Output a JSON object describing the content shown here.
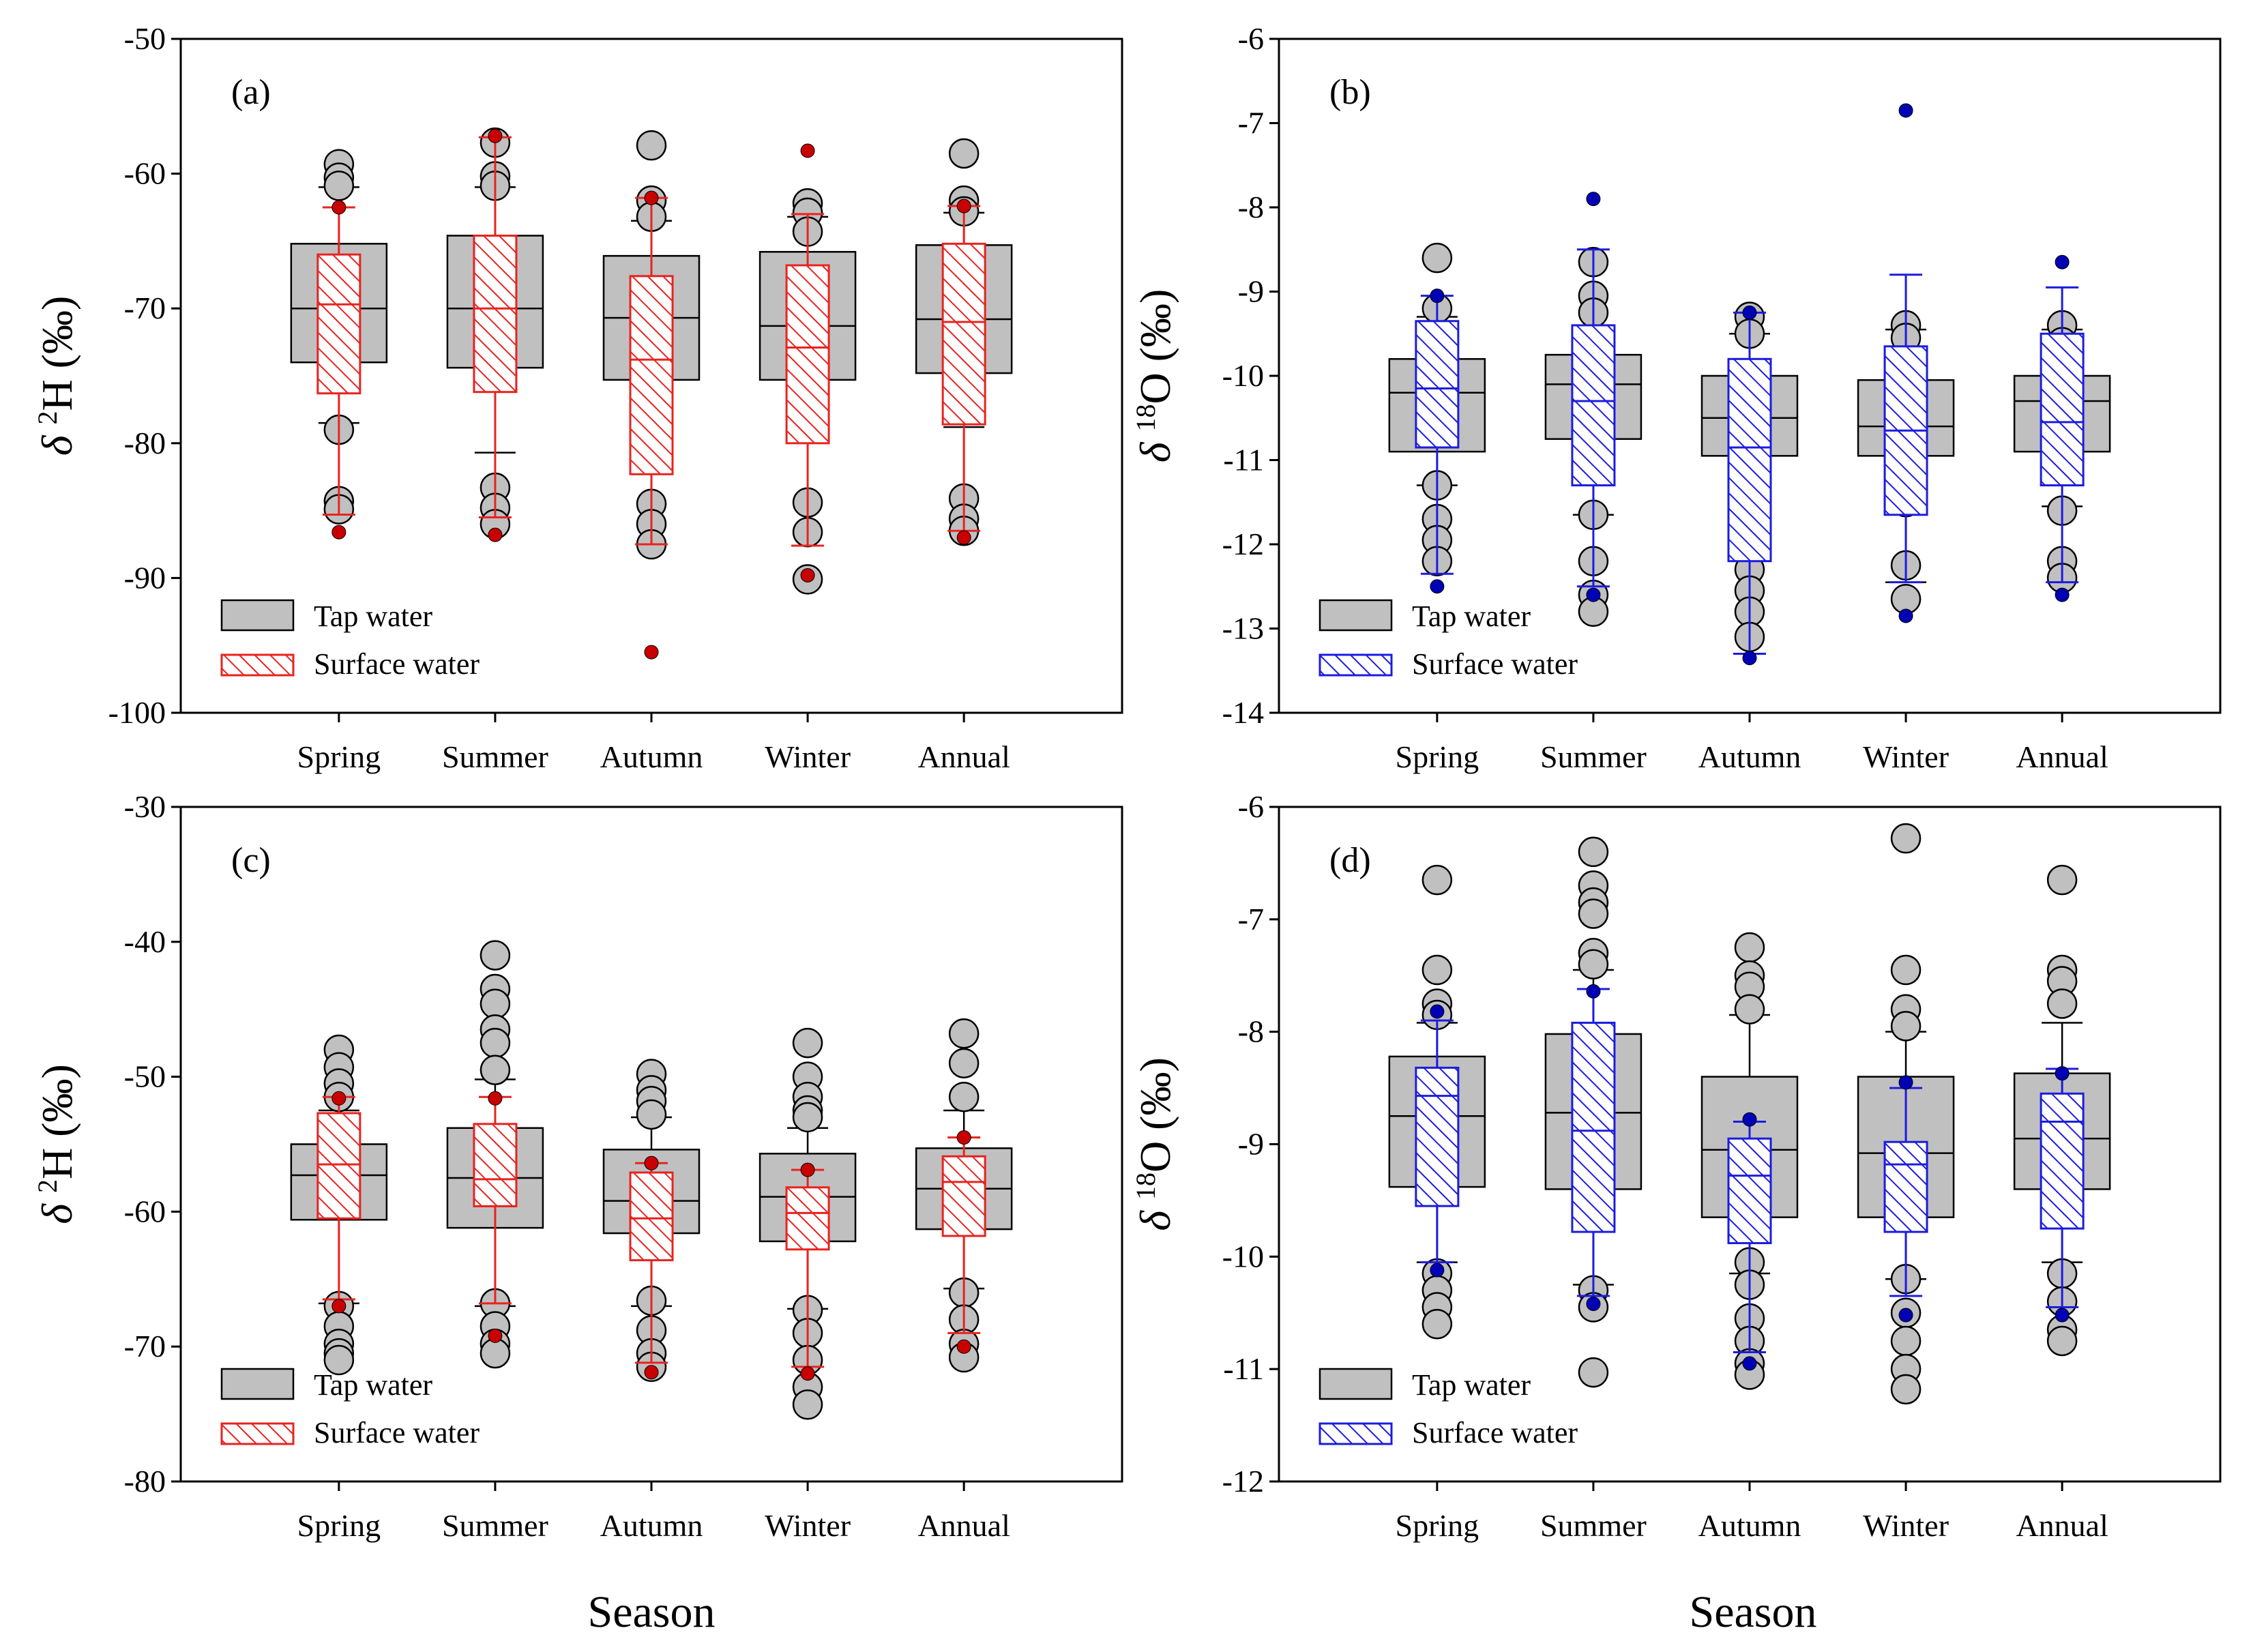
{
  "figure": {
    "xlabel": "Season",
    "xlabel_count": 2
  },
  "legend": {
    "tap": "Tap water",
    "surface": "Surface water"
  },
  "colors": {
    "tap_fill": "#c0c0c0",
    "red": "#e8231f",
    "blue": "#1c1ce0",
    "red_dot": "#c80000",
    "blue_dot": "#0000b4"
  },
  "chart_data": [
    {
      "type": "box",
      "label": "(a)",
      "ylabel": {
        "prefix": "δ",
        "sup": "2",
        "rest": "H (‰)"
      },
      "ylim": [
        -100,
        -50
      ],
      "yticks": [
        -100,
        -90,
        -80,
        -70,
        -60,
        -50
      ],
      "color": "red",
      "categories": [
        "Spring",
        "Summer",
        "Autumn",
        "Winter",
        "Annual"
      ],
      "tap": [
        {
          "q1": -74,
          "median": -70,
          "q3": -65.2,
          "wl": -78.5,
          "wh": -61,
          "out": [
            -59.3,
            -60.3,
            -60.9,
            -79,
            -84.3,
            -84.9
          ]
        },
        {
          "q1": -74.4,
          "median": -70,
          "q3": -64.6,
          "wl": -80.7,
          "wh": -61,
          "out": [
            -57.7,
            -60.2,
            -60.9,
            -83.3,
            -84.8,
            -86
          ]
        },
        {
          "q1": -75.3,
          "median": -70.7,
          "q3": -66.1,
          "wl": -78.1,
          "wh": -63.5,
          "out": [
            -57.9,
            -62,
            -63.2,
            -77.8,
            -84.5,
            -86,
            -87.5
          ]
        },
        {
          "q1": -75.3,
          "median": -71.3,
          "q3": -65.8,
          "wl": -78.5,
          "wh": -63.2,
          "out": [
            -62.2,
            -62.9,
            -64.3,
            -78.2,
            -84.4,
            -86.6,
            -90.1
          ]
        },
        {
          "q1": -74.8,
          "median": -70.8,
          "q3": -65.3,
          "wl": -78.8,
          "wh": -62.9,
          "out": [
            -58.5,
            -62,
            -62.8,
            -84.1,
            -85.6,
            -86.5
          ]
        }
      ],
      "surface": [
        {
          "q1": -76.3,
          "median": -69.7,
          "q3": -66,
          "wl": -85.3,
          "wh": -62.5,
          "out": [
            -62.5,
            -86.6
          ]
        },
        {
          "q1": -76.2,
          "median": -70,
          "q3": -64.6,
          "wl": -85.5,
          "wh": -57.3,
          "out": [
            -57.2,
            -86.8
          ]
        },
        {
          "q1": -82.3,
          "median": -73.8,
          "q3": -67.6,
          "wl": -87.5,
          "wh": -61.8,
          "out": [
            -61.8,
            -95.5
          ]
        },
        {
          "q1": -80,
          "median": -72.9,
          "q3": -66.8,
          "wl": -87.6,
          "wh": -63,
          "out": [
            -58.3,
            -89.8
          ]
        },
        {
          "q1": -78.6,
          "median": -71,
          "q3": -65.2,
          "wl": -86.5,
          "wh": -62.4,
          "out": [
            -62.4,
            -87
          ]
        }
      ]
    },
    {
      "type": "box",
      "label": "(b)",
      "ylabel": {
        "prefix": "δ",
        "sup": "18",
        "rest": "O (‰)"
      },
      "ylim": [
        -14,
        -6
      ],
      "yticks": [
        -14,
        -13,
        -12,
        -11,
        -10,
        -9,
        -8,
        -7,
        -6
      ],
      "color": "blue",
      "categories": [
        "Spring",
        "Summer",
        "Autumn",
        "Winter",
        "Annual"
      ],
      "tap": [
        {
          "q1": -10.9,
          "median": -10.2,
          "q3": -9.8,
          "wl": -11.3,
          "wh": -9.3,
          "out": [
            -8.6,
            -9.2,
            -11.3,
            -11.7,
            -11.95,
            -12.2
          ]
        },
        {
          "q1": -10.75,
          "median": -10.1,
          "q3": -9.75,
          "wl": -11.65,
          "wh": -9.4,
          "out": [
            -8.65,
            -9.05,
            -9.25,
            -11.65,
            -12.2,
            -12.6,
            -12.8
          ]
        },
        {
          "q1": -10.95,
          "median": -10.5,
          "q3": -10,
          "wl": -12.1,
          "wh": -9.5,
          "out": [
            -9.3,
            -9.5,
            -12.3,
            -12.55,
            -12.8,
            -13.1
          ]
        },
        {
          "q1": -10.95,
          "median": -10.6,
          "q3": -10.05,
          "wl": -12.45,
          "wh": -9.45,
          "out": [
            -9.4,
            -9.55,
            -11.5,
            -12.25,
            -12.65
          ]
        },
        {
          "q1": -10.9,
          "median": -10.3,
          "q3": -10,
          "wl": -11.55,
          "wh": -9.45,
          "out": [
            -9.4,
            -9.6,
            -11.6,
            -12.2,
            -12.4
          ]
        }
      ],
      "surface": [
        {
          "q1": -10.85,
          "median": -10.15,
          "q3": -9.35,
          "wl": -12.35,
          "wh": -9.05,
          "out": [
            -9.05,
            -12.5
          ]
        },
        {
          "q1": -11.3,
          "median": -10.3,
          "q3": -9.4,
          "wl": -12.5,
          "wh": -8.5,
          "out": [
            -7.9,
            -12.6
          ]
        },
        {
          "q1": -12.2,
          "median": -10.85,
          "q3": -9.8,
          "wl": -13.3,
          "wh": -9.25,
          "out": [
            -9.25,
            -13.35
          ]
        },
        {
          "q1": -11.65,
          "median": -10.65,
          "q3": -9.65,
          "wl": -12.45,
          "wh": -8.8,
          "out": [
            -6.85,
            -12.85
          ]
        },
        {
          "q1": -11.3,
          "median": -10.55,
          "q3": -9.5,
          "wl": -12.45,
          "wh": -8.95,
          "out": [
            -8.65,
            -12.6
          ]
        }
      ]
    },
    {
      "type": "box",
      "label": "(c)",
      "ylabel": {
        "prefix": "δ",
        "sup": "2",
        "rest": "H (‰)"
      },
      "ylim": [
        -80,
        -30
      ],
      "yticks": [
        -80,
        -70,
        -60,
        -50,
        -40,
        -30
      ],
      "color": "red",
      "categories": [
        "Spring",
        "Summer",
        "Autumn",
        "Winter",
        "Annual"
      ],
      "tap": [
        {
          "q1": -60.6,
          "median": -57.3,
          "q3": -55,
          "wl": -66.8,
          "wh": -52.5,
          "out": [
            -48,
            -49.3,
            -50.5,
            -51.5,
            -67,
            -68.5,
            -69.8,
            -70.5,
            -71
          ]
        },
        {
          "q1": -61.2,
          "median": -57.5,
          "q3": -53.8,
          "wl": -67,
          "wh": -50.2,
          "out": [
            -41,
            -43.5,
            -44.6,
            -46.5,
            -47.5,
            -49.5,
            -66.8,
            -68.5,
            -69.8,
            -70.5
          ]
        },
        {
          "q1": -61.6,
          "median": -59.2,
          "q3": -55.4,
          "wl": -67,
          "wh": -53,
          "out": [
            -49.8,
            -51,
            -51.8,
            -52.8,
            -66.6,
            -68.8,
            -70.5,
            -71.5
          ]
        },
        {
          "q1": -62.2,
          "median": -58.9,
          "q3": -55.7,
          "wl": -67.2,
          "wh": -53.8,
          "out": [
            -47.5,
            -50,
            -51.5,
            -52.5,
            -53,
            -67.3,
            -69,
            -71,
            -73,
            -74.3
          ]
        },
        {
          "q1": -61.3,
          "median": -58.3,
          "q3": -55.3,
          "wl": -65.7,
          "wh": -52.5,
          "out": [
            -46.8,
            -49,
            -51.5,
            -66,
            -68,
            -69.8,
            -70.8
          ]
        }
      ],
      "surface": [
        {
          "q1": -60.5,
          "median": -56.5,
          "q3": -52.7,
          "wl": -66.5,
          "wh": -51.5,
          "out": [
            -51.6,
            -67
          ]
        },
        {
          "q1": -59.6,
          "median": -57.6,
          "q3": -53.5,
          "wl": -66.8,
          "wh": -51.5,
          "out": [
            -51.6,
            -69.2
          ]
        },
        {
          "q1": -63.6,
          "median": -60.5,
          "q3": -57.1,
          "wl": -71.2,
          "wh": -56.4,
          "out": [
            -56.4,
            -71.9
          ]
        },
        {
          "q1": -62.8,
          "median": -60.1,
          "q3": -58.2,
          "wl": -71.5,
          "wh": -56.9,
          "out": [
            -56.9,
            -72
          ]
        },
        {
          "q1": -61.8,
          "median": -57.8,
          "q3": -55.9,
          "wl": -69,
          "wh": -54.5,
          "out": [
            -54.5,
            -70
          ]
        }
      ]
    },
    {
      "type": "box",
      "label": "(d)",
      "ylabel": {
        "prefix": "δ",
        "sup": "18",
        "rest": "O (‰)"
      },
      "ylim": [
        -12,
        -6
      ],
      "yticks": [
        -12,
        -11,
        -10,
        -9,
        -8,
        -7,
        -6
      ],
      "color": "blue",
      "categories": [
        "Spring",
        "Summer",
        "Autumn",
        "Winter",
        "Annual"
      ],
      "tap": [
        {
          "q1": -9.38,
          "median": -8.75,
          "q3": -8.22,
          "wl": -10.05,
          "wh": -7.92,
          "out": [
            -6.65,
            -7.45,
            -7.75,
            -7.85,
            -10.15,
            -10.3,
            -10.45,
            -10.6
          ]
        },
        {
          "q1": -9.4,
          "median": -8.72,
          "q3": -8.02,
          "wl": -10.25,
          "wh": -7.45,
          "out": [
            -6.4,
            -6.7,
            -6.85,
            -6.95,
            -7.3,
            -7.4,
            -10.3,
            -10.45,
            -11.03
          ]
        },
        {
          "q1": -9.65,
          "median": -9.05,
          "q3": -8.4,
          "wl": -10.15,
          "wh": -7.85,
          "out": [
            -7.25,
            -7.5,
            -7.6,
            -7.8,
            -10.05,
            -10.25,
            -10.55,
            -10.75,
            -10.95,
            -11.05
          ]
        },
        {
          "q1": -9.65,
          "median": -9.08,
          "q3": -8.4,
          "wl": -10.2,
          "wh": -8,
          "out": [
            -6.28,
            -7.45,
            -7.8,
            -7.95,
            -10.2,
            -10.5,
            -10.75,
            -11,
            -11.18
          ]
        },
        {
          "q1": -9.4,
          "median": -8.95,
          "q3": -8.37,
          "wl": -10.05,
          "wh": -7.92,
          "out": [
            -6.65,
            -7.45,
            -7.55,
            -7.75,
            -10.15,
            -10.4,
            -10.65,
            -10.75
          ]
        }
      ],
      "surface": [
        {
          "q1": -9.55,
          "median": -8.57,
          "q3": -8.32,
          "wl": -10.05,
          "wh": -7.9,
          "out": [
            -7.82,
            -10.12
          ]
        },
        {
          "q1": -9.78,
          "median": -8.88,
          "q3": -7.92,
          "wl": -10.35,
          "wh": -7.62,
          "out": [
            -7.64,
            -10.42
          ]
        },
        {
          "q1": -9.88,
          "median": -9.28,
          "q3": -8.95,
          "wl": -10.85,
          "wh": -8.8,
          "out": [
            -8.78,
            -10.95
          ]
        },
        {
          "q1": -9.78,
          "median": -9.18,
          "q3": -8.98,
          "wl": -10.35,
          "wh": -8.5,
          "out": [
            -8.45,
            -10.52
          ]
        },
        {
          "q1": -9.75,
          "median": -8.8,
          "q3": -8.55,
          "wl": -10.45,
          "wh": -8.33,
          "out": [
            -8.37,
            -10.52
          ]
        }
      ]
    }
  ]
}
